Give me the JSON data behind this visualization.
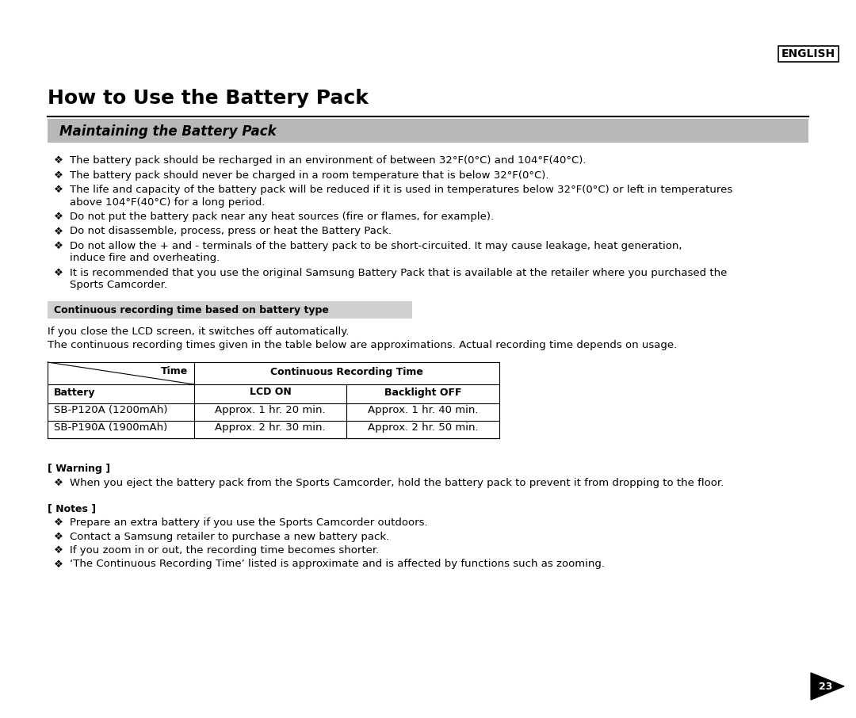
{
  "bg_color": "#ffffff",
  "english_label": "ENGLISH",
  "main_title": "How to Use the Battery Pack",
  "section_title": "Maintaining the Battery Pack",
  "section_bg": "#b8b8b8",
  "bullet_char": "❖",
  "bullets": [
    [
      "The battery pack should be recharged in an environment of between 32°F(0°C) and 104°F(40°C)."
    ],
    [
      "The battery pack should never be charged in a room temperature that is below 32°F(0°C)."
    ],
    [
      "The life and capacity of the battery pack will be reduced if it is used in temperatures below 32°F(0°C) or left in temperatures",
      "above 104°F(40°C) for a long period."
    ],
    [
      "Do not put the battery pack near any heat sources (fire or flames, for example)."
    ],
    [
      "Do not disassemble, process, press or heat the Battery Pack."
    ],
    [
      "Do not allow the + and - terminals of the battery pack to be short-circuited. It may cause leakage, heat generation,",
      "induce fire and overheating."
    ],
    [
      "It is recommended that you use the original Samsung Battery Pack that is available at the retailer where you purchased the",
      "Sports Camcorder."
    ]
  ],
  "subsection_title": "Continuous recording time based on battery type",
  "subsection_bg": "#d0d0d0",
  "para1": "If you close the LCD screen, it switches off automatically.",
  "para2": "The continuous recording times given in the table below are approximations. Actual recording time depends on usage.",
  "table_header_time": "Time",
  "table_header_crt": "Continuous Recording Time",
  "table_header_battery": "Battery",
  "table_header_lcdon": "LCD ON",
  "table_header_backlight": "Backlight OFF",
  "table_data": [
    [
      "SB-P120A (1200mAh)",
      "Approx. 1 hr. 20 min.",
      "Approx. 1 hr. 40 min."
    ],
    [
      "SB-P190A (1900mAh)",
      "Approx. 2 hr. 30 min.",
      "Approx. 2 hr. 50 min."
    ]
  ],
  "warning_title": "[ Warning ]",
  "warning_bullet": "When you eject the battery pack from the Sports Camcorder, hold the battery pack to prevent it from dropping to the floor.",
  "notes_title": "[ Notes ]",
  "notes_bullets": [
    "Prepare an extra battery if you use the Sports Camcorder outdoors.",
    "Contact a Samsung retailer to purchase a new battery pack.",
    "If you zoom in or out, the recording time becomes shorter.",
    "‘The Continuous Recording Time’ listed is approximate and is affected by functions such as zooming."
  ],
  "page_number": "23"
}
